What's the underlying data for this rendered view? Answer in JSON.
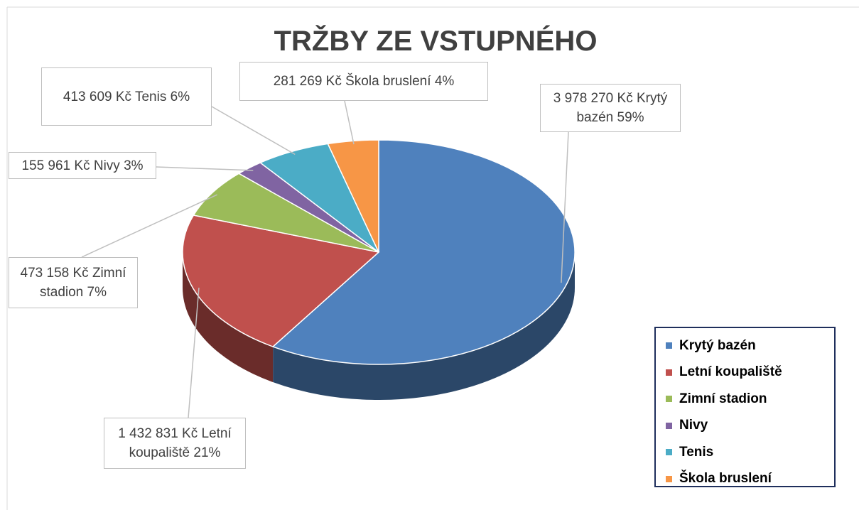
{
  "chart_data": {
    "type": "pie3d",
    "title": "TRŽBY ZE VSTUPNÉHO",
    "categories": [
      "Krytý bazén",
      "Letní koupaliště",
      "Zimní stadion",
      "Nivy",
      "Tenis",
      "Škola bruslení"
    ],
    "values": [
      3978270,
      1432831,
      473158,
      155961,
      413609,
      281269
    ],
    "value_labels": [
      "3 978 270 Kč",
      "1 432 831 Kč",
      "473 158 Kč",
      "155 961 Kč",
      "413 609 Kč",
      "281 269 Kč"
    ],
    "percent_labels": [
      "59%",
      "21%",
      "7%",
      "3%",
      "6%",
      "4%"
    ],
    "colors": [
      "#4f81bd",
      "#c0504d",
      "#9bbb59",
      "#8064a2",
      "#4bacc6",
      "#f79646"
    ],
    "legend": "right"
  }
}
